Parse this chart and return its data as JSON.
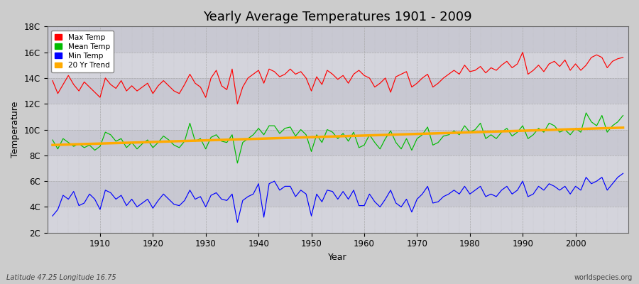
{
  "title": "Yearly Average Temperatures 1901 - 2009",
  "xlabel": "Year",
  "ylabel": "Temperature",
  "lat_lon_label": "Latitude 47.25 Longitude 16.75",
  "source_label": "worldspecies.org",
  "bg_color": "#d8d8d8",
  "band_colors": [
    "#d0d0d8",
    "#c8c8d4"
  ],
  "grid_color": "#bbbbcc",
  "ylim": [
    2,
    18
  ],
  "yticks": [
    2,
    4,
    6,
    8,
    10,
    12,
    14,
    16,
    18
  ],
  "ytick_labels": [
    "2C",
    "4C",
    "6C",
    "8C",
    "10C",
    "12C",
    "14C",
    "16C",
    "18C"
  ],
  "xstart": 1901,
  "xend": 2009,
  "max_color": "#ff0000",
  "mean_color": "#00bb00",
  "min_color": "#0000ff",
  "trend_color": "#ffaa00",
  "max_temps": [
    13.8,
    12.8,
    13.5,
    14.2,
    13.5,
    13.0,
    13.7,
    13.3,
    12.9,
    12.5,
    14.0,
    13.5,
    13.2,
    13.8,
    13.0,
    13.4,
    13.0,
    13.3,
    13.6,
    12.8,
    13.4,
    13.8,
    13.4,
    13.0,
    12.8,
    13.5,
    14.3,
    13.6,
    13.3,
    12.5,
    14.0,
    14.6,
    13.4,
    13.1,
    14.7,
    12.0,
    13.3,
    14.0,
    14.3,
    14.6,
    13.6,
    14.7,
    14.5,
    14.1,
    14.3,
    14.7,
    14.3,
    14.5,
    14.0,
    13.0,
    14.1,
    13.5,
    14.6,
    14.3,
    13.9,
    14.2,
    13.6,
    14.3,
    14.6,
    14.2,
    14.0,
    13.3,
    13.6,
    14.0,
    12.9,
    14.1,
    14.3,
    14.5,
    13.3,
    13.6,
    14.0,
    14.3,
    13.3,
    13.6,
    14.0,
    14.3,
    14.6,
    14.3,
    15.0,
    14.5,
    14.6,
    14.9,
    14.4,
    14.8,
    14.6,
    15.0,
    15.3,
    14.8,
    15.1,
    16.0,
    14.3,
    14.6,
    15.0,
    14.5,
    15.1,
    15.3,
    14.9,
    15.4,
    14.6,
    15.1,
    14.6,
    15.0,
    15.6,
    15.8,
    15.6,
    14.8,
    15.3,
    15.5,
    15.6
  ],
  "mean_temps": [
    9.2,
    8.5,
    9.3,
    9.0,
    8.7,
    8.9,
    8.6,
    8.8,
    8.4,
    8.7,
    9.8,
    9.6,
    9.1,
    9.3,
    8.6,
    9.0,
    8.5,
    8.9,
    9.2,
    8.6,
    9.0,
    9.5,
    9.2,
    8.8,
    8.6,
    9.1,
    10.5,
    9.1,
    9.3,
    8.5,
    9.4,
    9.6,
    9.1,
    9.0,
    9.6,
    7.4,
    9.0,
    9.3,
    9.6,
    10.1,
    9.6,
    10.3,
    10.3,
    9.7,
    10.1,
    10.2,
    9.5,
    10.0,
    9.6,
    8.3,
    9.6,
    9.0,
    10.0,
    9.8,
    9.3,
    9.7,
    9.1,
    9.8,
    8.6,
    8.8,
    9.6,
    9.0,
    8.5,
    9.3,
    9.9,
    9.0,
    8.5,
    9.3,
    8.4,
    9.3,
    9.6,
    10.2,
    8.8,
    9.0,
    9.5,
    9.6,
    9.9,
    9.6,
    10.3,
    9.8,
    10.0,
    10.5,
    9.3,
    9.6,
    9.3,
    9.8,
    10.1,
    9.5,
    9.8,
    10.3,
    9.3,
    9.6,
    10.1,
    9.8,
    10.5,
    10.3,
    9.8,
    10.0,
    9.6,
    10.1,
    9.8,
    11.3,
    10.6,
    10.3,
    11.1,
    9.8,
    10.3,
    10.6,
    11.1
  ],
  "min_temps": [
    3.3,
    3.8,
    4.9,
    4.6,
    5.2,
    4.1,
    4.3,
    5.0,
    4.6,
    3.8,
    5.3,
    5.1,
    4.6,
    4.9,
    4.1,
    4.6,
    4.0,
    4.3,
    4.6,
    3.9,
    4.5,
    5.0,
    4.6,
    4.2,
    4.1,
    4.5,
    5.3,
    4.6,
    4.8,
    4.0,
    4.9,
    5.1,
    4.6,
    4.5,
    5.0,
    2.8,
    4.5,
    4.8,
    5.0,
    5.8,
    3.2,
    5.8,
    6.0,
    5.3,
    5.6,
    5.6,
    4.8,
    5.3,
    5.0,
    3.3,
    5.0,
    4.4,
    5.3,
    5.2,
    4.6,
    5.2,
    4.6,
    5.3,
    4.1,
    4.1,
    5.0,
    4.4,
    4.0,
    4.6,
    5.3,
    4.3,
    4.0,
    4.6,
    3.6,
    4.6,
    5.0,
    5.6,
    4.3,
    4.4,
    4.8,
    5.0,
    5.3,
    5.0,
    5.6,
    5.0,
    5.3,
    5.6,
    4.8,
    5.0,
    4.8,
    5.3,
    5.6,
    5.0,
    5.3,
    6.0,
    4.8,
    5.0,
    5.6,
    5.3,
    5.8,
    5.6,
    5.3,
    5.6,
    5.0,
    5.6,
    5.3,
    6.3,
    5.8,
    6.0,
    6.3,
    5.3,
    5.8,
    6.3,
    6.6
  ]
}
